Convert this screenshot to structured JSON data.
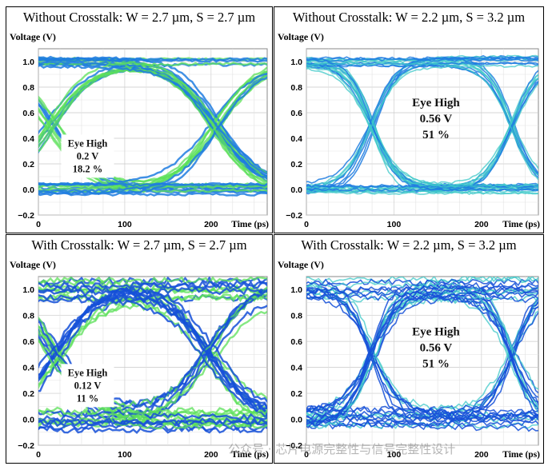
{
  "chart_data": [
    {
      "type": "line",
      "title": "Without Crosstalk: W = 2.7 µm, S = 2.7 µm",
      "ylabel": "Voltage (V)",
      "xlabel": "Time (ps)",
      "xlim": [
        0,
        265
      ],
      "ylim": [
        -0.2,
        1.1
      ],
      "x_ticks": [
        "0",
        "100",
        "200"
      ],
      "y_ticks": [
        "−0.2",
        "0.0",
        "0.2",
        "0.4",
        "0.6",
        "0.8",
        "1.0"
      ],
      "grid": true,
      "crossings_ps": [
        15,
        205
      ],
      "eye_label": "Eye High",
      "eye_height": "0.2 V",
      "eye_percent": "18.2 %",
      "eye_height_value": 0.2,
      "eye_percent_value": 18.2,
      "colors": {
        "traces": "#1f7de0",
        "dense": "#5ce05a",
        "grid": "#c8c8c8"
      }
    },
    {
      "type": "line",
      "title": "Without Crosstalk: W = 2.2 µm, S = 3.2 µm",
      "ylabel": "Voltage (V)",
      "xlabel": "Time (ps)",
      "xlim": [
        0,
        265
      ],
      "ylim": [
        -0.2,
        1.1
      ],
      "x_ticks": [
        "0",
        "100",
        "200"
      ],
      "y_ticks": [
        "−0.2",
        "0.0",
        "0.2",
        "0.4",
        "0.6",
        "0.8",
        "1.0"
      ],
      "grid": true,
      "crossings_ps": [
        75,
        235
      ],
      "eye_label": "Eye High",
      "eye_height": "0.56 V",
      "eye_percent": "51 %",
      "eye_height_value": 0.56,
      "eye_percent_value": 51,
      "colors": {
        "traces": "#1f7de0",
        "dense": "#3ec8c8",
        "grid": "#c8c8c8"
      }
    },
    {
      "type": "line",
      "title": "With Crosstalk: W = 2.7 µm, S = 2.7 µm",
      "ylabel": "Voltage (V)",
      "xlabel": "Time (ps)",
      "xlim": [
        0,
        265
      ],
      "ylim": [
        -0.2,
        1.1
      ],
      "x_ticks": [
        "0",
        "100",
        "200"
      ],
      "y_ticks": [
        "−0.2",
        "0.0",
        "0.2",
        "0.4",
        "0.6",
        "0.8",
        "1.0"
      ],
      "grid": true,
      "crossings_ps": [
        20,
        200
      ],
      "eye_label": "Eye High",
      "eye_height": "0.12 V",
      "eye_percent": "11 %",
      "eye_height_value": 0.12,
      "eye_percent_value": 11,
      "colors": {
        "traces": "#1550d8",
        "dense": "#5ce05a",
        "grid": "#c8c8c8"
      }
    },
    {
      "type": "line",
      "title": "With Crosstalk: W = 2.2 µm, S = 3.2 µm",
      "ylabel": "Voltage (V)",
      "xlabel": "Time (ps)",
      "xlim": [
        0,
        265
      ],
      "ylim": [
        -0.2,
        1.1
      ],
      "x_ticks": [
        "0",
        "100",
        "200"
      ],
      "y_ticks": [
        "−0.2",
        "0.0",
        "0.2",
        "0.4",
        "0.6",
        "0.8",
        "1.0"
      ],
      "grid": true,
      "crossings_ps": [
        75,
        235
      ],
      "eye_label": "Eye High",
      "eye_height": "0.56 V",
      "eye_percent": "51 %",
      "eye_height_value": 0.56,
      "eye_percent_value": 51,
      "colors": {
        "traces": "#1550d8",
        "dense": "#3ec8c8",
        "grid": "#c8c8c8"
      }
    }
  ],
  "watermark": "公众号 · 芯片电源完整性与信号完整性设计"
}
